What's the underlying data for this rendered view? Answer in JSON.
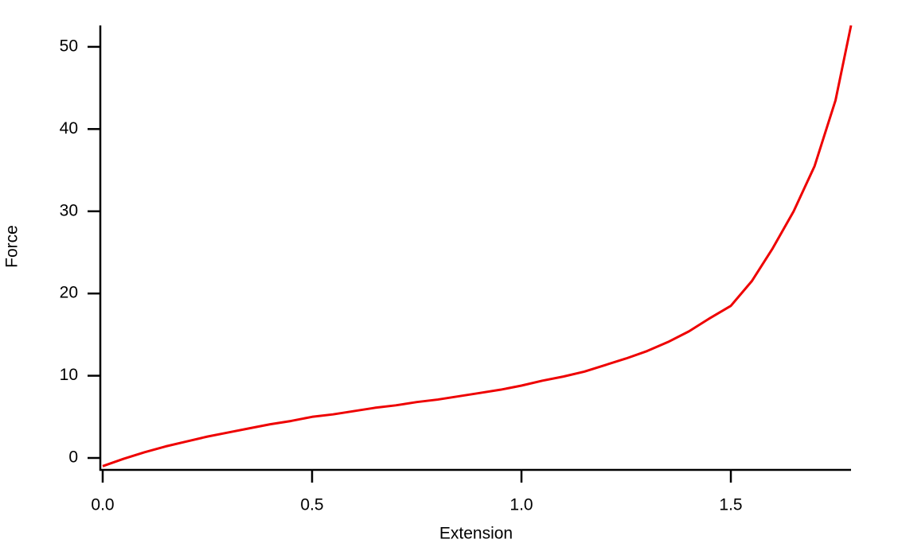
{
  "chart_data": {
    "type": "line",
    "xlabel": "Extension",
    "ylabel": "Force",
    "x": [
      0,
      0.05,
      0.1,
      0.15,
      0.2,
      0.25,
      0.3,
      0.35,
      0.4,
      0.45,
      0.5,
      0.55,
      0.6,
      0.65,
      0.7,
      0.75,
      0.8,
      0.85,
      0.9,
      0.95,
      1.0,
      1.05,
      1.1,
      1.15,
      1.2,
      1.25,
      1.3,
      1.35,
      1.4,
      1.45,
      1.5,
      1.55,
      1.6,
      1.65,
      1.7,
      1.75,
      1.787
    ],
    "values": [
      -1.0,
      -0.1,
      0.7,
      1.4,
      2.0,
      2.6,
      3.1,
      3.6,
      4.1,
      4.5,
      5.0,
      5.3,
      5.7,
      6.1,
      6.4,
      6.8,
      7.1,
      7.5,
      7.9,
      8.3,
      8.8,
      9.4,
      9.9,
      10.5,
      11.3,
      12.1,
      13.0,
      14.1,
      15.4,
      17.0,
      18.5,
      21.5,
      25.5,
      30.0,
      35.5,
      43.5,
      52.6
    ],
    "color": "#ee0000",
    "xlim": [
      -0.0057,
      1.787
    ],
    "ylim": [
      -1.45,
      52.6
    ],
    "xticks": [
      {
        "value": 0,
        "label": "0.0"
      },
      0.5,
      {
        "value": 1,
        "label": "1.0"
      },
      1.5
    ],
    "yticks": [
      0,
      10,
      20,
      30,
      40,
      50
    ],
    "grid": false
  }
}
